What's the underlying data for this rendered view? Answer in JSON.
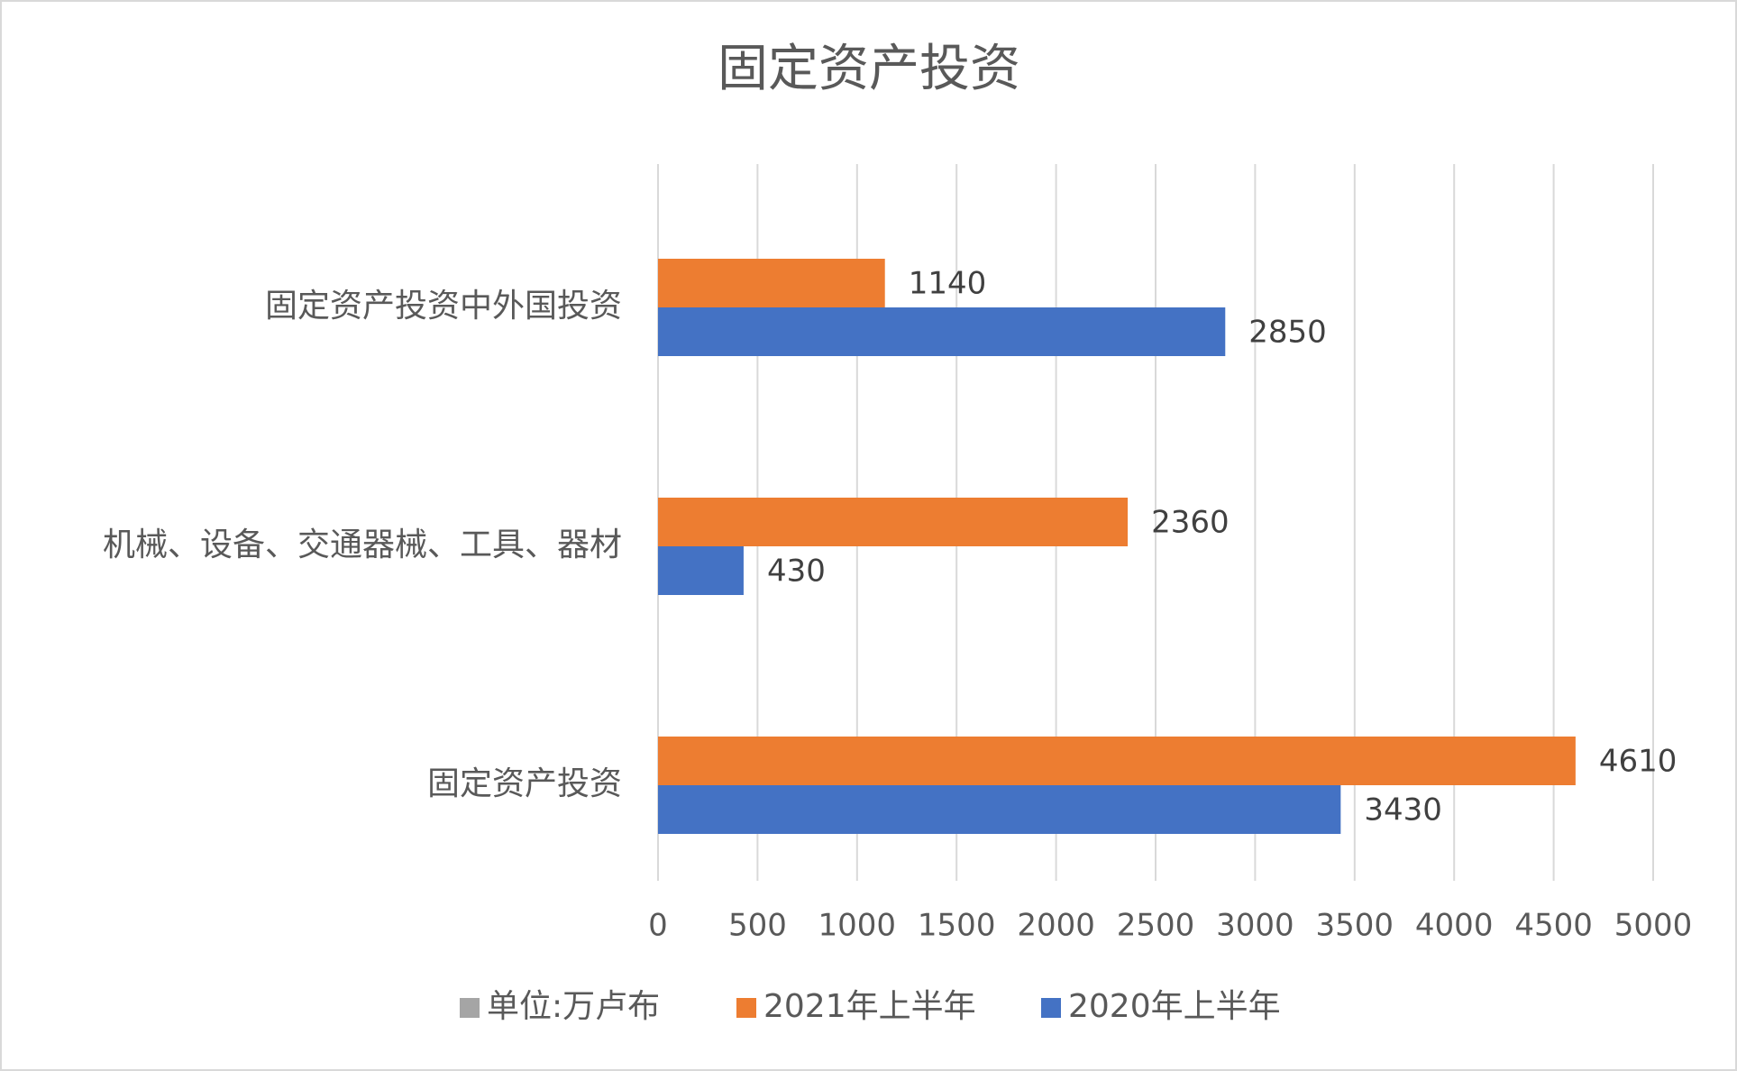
{
  "chart_data": {
    "type": "hbar",
    "title": "固定资产投资",
    "categories": [
      "固定资产投资中外国投资",
      "机械、设备、交通器械、工具、器材",
      "固定资产投资"
    ],
    "series": [
      {
        "name": "单位:万卢布",
        "color": "#a5a5a5",
        "values": [
          null,
          null,
          null
        ]
      },
      {
        "name": "2021年上半年",
        "color": "#ed7d31",
        "values": [
          1140,
          2360,
          4610
        ]
      },
      {
        "name": "2020年上半年",
        "color": "#4472c4",
        "values": [
          2850,
          430,
          3430
        ]
      }
    ],
    "xlim": [
      0,
      5000
    ],
    "xticks": [
      0,
      500,
      1000,
      1500,
      2000,
      2500,
      3000,
      3500,
      4000,
      4500,
      5000
    ],
    "grid": true,
    "legend": "bottom"
  }
}
